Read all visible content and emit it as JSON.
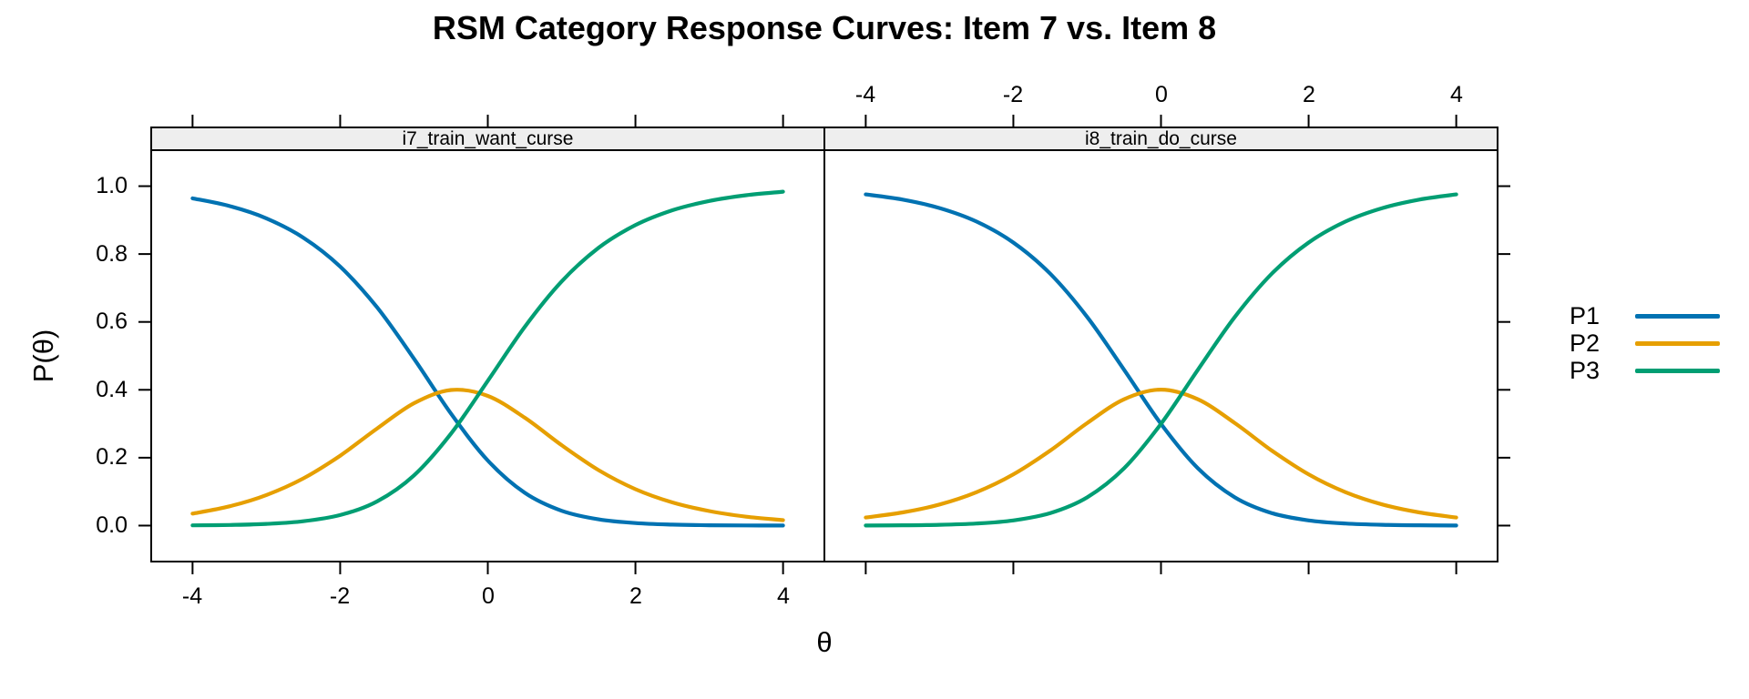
{
  "figure": {
    "title": "RSM Category Response Curves: Item 7 vs. Item 8",
    "x_axis_label": "θ",
    "y_axis_label": "P(θ)"
  },
  "axes": {
    "x_tick_labels": [
      "-4",
      "-2",
      "0",
      "2",
      "4"
    ],
    "y_tick_labels": [
      "0.0",
      "0.2",
      "0.4",
      "0.6",
      "0.8",
      "1.0"
    ]
  },
  "colors": {
    "strip_bg": "#EEEEEE",
    "frame": "#000000",
    "p1_blue": "#0072B2",
    "p2_orange": "#E69F00",
    "p3_green": "#009E73"
  },
  "legend": {
    "items": [
      {
        "label": "P1",
        "color": "#0072B2"
      },
      {
        "label": "P2",
        "color": "#E69F00"
      },
      {
        "label": "P3",
        "color": "#009E73"
      }
    ]
  },
  "chart_data": {
    "type": "line",
    "title": "RSM Category Response Curves: Item 7 vs. Item 8",
    "xlabel": "θ",
    "ylabel": "P(θ)",
    "grid": false,
    "legend_position": "right",
    "xlim": [
      -4.56,
      4.56
    ],
    "ylim": [
      -0.106,
      1.106
    ],
    "x_ticks": [
      -4,
      -2,
      0,
      2,
      4
    ],
    "y_ticks": [
      0,
      0.2,
      0.4,
      0.6,
      0.8,
      1.0
    ],
    "x": [
      -4,
      -3.5,
      -3,
      -2.5,
      -2,
      -1.5,
      -1,
      -0.5,
      0,
      0.5,
      1,
      1.5,
      2,
      2.5,
      3,
      3.5,
      4
    ],
    "panels": [
      {
        "strip_label": "i7_train_want_curse",
        "series": [
          {
            "name": "P1",
            "color": "#0072B2",
            "values": [
              0.9641,
              0.9414,
              0.9052,
              0.8484,
              0.763,
              0.6428,
              0.4915,
              0.3303,
              0.1916,
              0.0967,
              0.0437,
              0.0183,
              0.0073,
              0.0028,
              0.0011,
              0.0004,
              0.0001
            ]
          },
          {
            "name": "P2",
            "color": "#E69F00",
            "values": [
              0.0352,
              0.0567,
              0.0899,
              0.1389,
              0.2059,
              0.286,
              0.3605,
              0.3994,
              0.382,
              0.318,
              0.237,
              0.1635,
              0.1073,
              0.0683,
              0.0427,
              0.0263,
              0.0161
            ]
          },
          {
            "name": "P3",
            "color": "#009E73",
            "values": [
              0.0007,
              0.0019,
              0.005,
              0.0127,
              0.0311,
              0.0712,
              0.148,
              0.2704,
              0.4264,
              0.5853,
              0.7192,
              0.8182,
              0.8854,
              0.9289,
              0.9563,
              0.9733,
              0.9837
            ]
          }
        ]
      },
      {
        "strip_label": "i8_train_do_curse",
        "series": [
          {
            "name": "P1",
            "color": "#0072B2",
            "values": [
              0.9758,
              0.9604,
              0.9354,
              0.8957,
              0.8339,
              0.7418,
              0.6146,
              0.459,
              0.2997,
              0.1689,
              0.0832,
              0.0369,
              0.0153,
              0.006,
              0.0023,
              0.0009,
              0.0003
            ]
          },
          {
            "name": "P2",
            "color": "#E69F00",
            "values": [
              0.0239,
              0.0387,
              0.0622,
              0.0983,
              0.1508,
              0.2212,
              0.3022,
              0.3721,
              0.4006,
              0.3721,
              0.3022,
              0.2212,
              0.1508,
              0.0983,
              0.0622,
              0.0387,
              0.0239
            ]
          },
          {
            "name": "P3",
            "color": "#009E73",
            "values": [
              0.0003,
              0.0009,
              0.0023,
              0.006,
              0.0153,
              0.0369,
              0.0832,
              0.1689,
              0.2997,
              0.459,
              0.6146,
              0.7418,
              0.8339,
              0.8957,
              0.9354,
              0.9604,
              0.9758
            ]
          }
        ]
      }
    ]
  }
}
